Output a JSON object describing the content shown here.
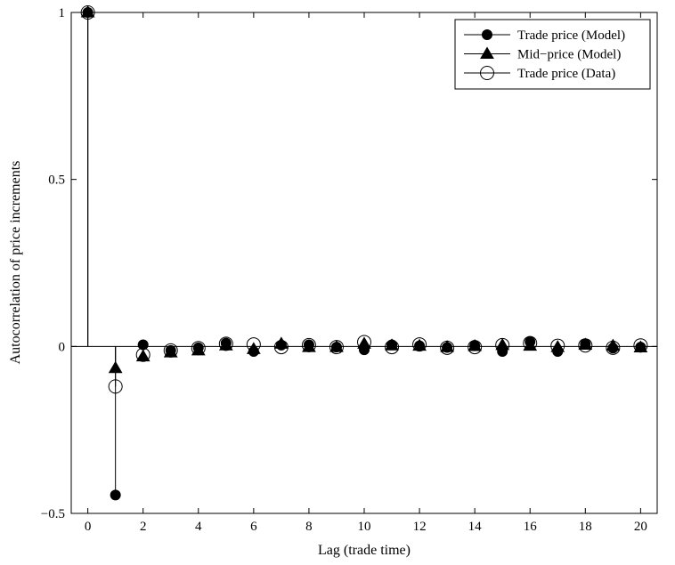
{
  "chart_data": {
    "type": "scatter",
    "plot_style": "stem",
    "xlabel": "Lag (trade time)",
    "ylabel": "Autocorrelation of price increments",
    "xlim": [
      -0.6,
      20.6
    ],
    "ylim": [
      -0.5,
      1
    ],
    "xticks": [
      0,
      2,
      4,
      6,
      8,
      10,
      12,
      14,
      16,
      18,
      20
    ],
    "yticks": [
      -0.5,
      0,
      0.5,
      1
    ],
    "ytick_labels": [
      "−0.5",
      "0",
      "0.5",
      "1"
    ],
    "grid": false,
    "legend_position": "top-right",
    "color": "#000000",
    "series": [
      {
        "name": "Trade price (Model)",
        "marker": "filled-circle",
        "x": [
          0,
          1,
          2,
          3,
          4,
          5,
          6,
          7,
          8,
          9,
          10,
          11,
          12,
          13,
          14,
          15,
          16,
          17,
          18,
          19,
          20
        ],
        "y": [
          1,
          -0.445,
          0.005,
          -0.012,
          -0.004,
          0.01,
          -0.015,
          0.004,
          0.005,
          -0.002,
          -0.01,
          0.005,
          0.002,
          -0.003,
          0.002,
          -0.015,
          0.014,
          -0.015,
          0.007,
          -0.005,
          -0.002
        ]
      },
      {
        "name": "Mid−price (Model)",
        "marker": "filled-triangle",
        "x": [
          0,
          1,
          2,
          3,
          4,
          5,
          6,
          7,
          8,
          9,
          10,
          11,
          12,
          13,
          14,
          15,
          16,
          17,
          18,
          19,
          20
        ],
        "y": [
          1,
          -0.065,
          -0.03,
          -0.018,
          -0.012,
          0.003,
          -0.008,
          0.008,
          -0.002,
          -0.002,
          0.008,
          0.003,
          0.002,
          -0.002,
          0.001,
          0.004,
          0.002,
          -0.002,
          0.005,
          0.002,
          -0.003
        ]
      },
      {
        "name": "Trade price (Data)",
        "marker": "open-circle",
        "x": [
          0,
          1,
          2,
          3,
          4,
          5,
          6,
          7,
          8,
          9,
          10,
          11,
          12,
          13,
          14,
          15,
          16,
          17,
          18,
          19,
          20
        ],
        "y": [
          1,
          -0.12,
          -0.025,
          -0.012,
          -0.005,
          0.008,
          0.006,
          -0.002,
          0.004,
          -0.002,
          0.013,
          -0.002,
          0.006,
          -0.004,
          -0.002,
          0.004,
          0.01,
          0.002,
          0.003,
          -0.004,
          0.003
        ]
      }
    ]
  }
}
